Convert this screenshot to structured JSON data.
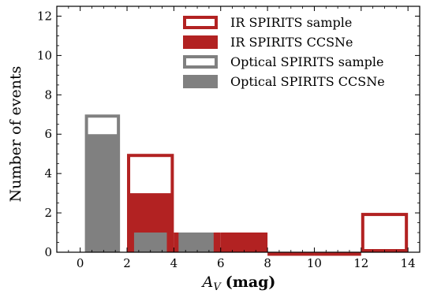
{
  "chart_data": {
    "type": "bar",
    "xlabel": "A_V (mag)",
    "xlabel_symbol": "A",
    "xlabel_subscript": "V",
    "xlabel_unit": "(mag)",
    "ylabel": "Number of events",
    "xlim": [
      -1,
      14.5
    ],
    "ylim": [
      0,
      12.5
    ],
    "xticks": [
      0,
      2,
      4,
      6,
      8,
      10,
      12,
      14
    ],
    "yticks": [
      0,
      2,
      4,
      6,
      8,
      10,
      12
    ],
    "grid": false,
    "legend_position": "top-right",
    "series": [
      {
        "name": "IR SPIRITS sample",
        "style": "outline",
        "color": "#b22222",
        "bins": [
          {
            "x0": 2,
            "x1": 4,
            "value": 5
          },
          {
            "x0": 4,
            "x1": 6,
            "value": 1
          },
          {
            "x0": 6,
            "x1": 8,
            "value": 1
          },
          {
            "x0": 8,
            "x1": 10,
            "value": 0
          },
          {
            "x0": 10,
            "x1": 12,
            "value": 0
          },
          {
            "x0": 12,
            "x1": 14,
            "value": 2
          }
        ]
      },
      {
        "name": "IR SPIRITS CCSNe",
        "style": "filled",
        "color": "#b22222",
        "bins": [
          {
            "x0": 2,
            "x1": 4,
            "value": 3
          },
          {
            "x0": 4,
            "x1": 6,
            "value": 1
          },
          {
            "x0": 6,
            "x1": 8,
            "value": 1
          }
        ]
      },
      {
        "name": "Optical SPIRITS sample",
        "style": "outline",
        "color": "#808080",
        "bins": [
          {
            "x0": 0.2,
            "x1": 1.7,
            "value": 7
          },
          {
            "x0": 2.3,
            "x1": 3.7,
            "value": 1
          },
          {
            "x0": 4.2,
            "x1": 5.7,
            "value": 1
          }
        ]
      },
      {
        "name": "Optical SPIRITS CCSNe",
        "style": "filled",
        "color": "#808080",
        "bins": [
          {
            "x0": 0.2,
            "x1": 1.7,
            "value": 6
          },
          {
            "x0": 2.3,
            "x1": 3.7,
            "value": 1
          },
          {
            "x0": 4.2,
            "x1": 5.7,
            "value": 1
          }
        ]
      }
    ]
  }
}
